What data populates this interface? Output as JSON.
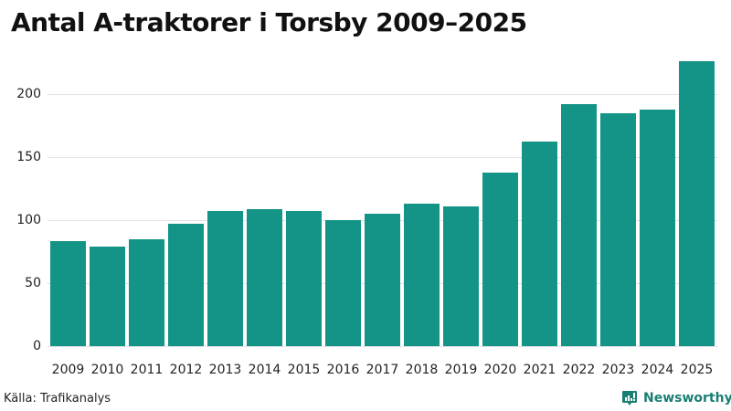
{
  "title": "Antal A-traktorer i Torsby 2009–2025",
  "source": "Källa: Trafikanalys",
  "brand": {
    "name": "Newsworthy",
    "icon": "newsworthy-chart-bubble-icon",
    "color": "#1a7e73"
  },
  "colors": {
    "bar": "#149486",
    "grid": "#e2e2e8"
  },
  "chart_data": {
    "type": "bar",
    "title": "Antal A-traktorer i Torsby 2009–2025",
    "xlabel": "",
    "ylabel": "",
    "categories": [
      "2009",
      "2010",
      "2011",
      "2012",
      "2013",
      "2014",
      "2015",
      "2016",
      "2017",
      "2018",
      "2019",
      "2020",
      "2021",
      "2022",
      "2023",
      "2024",
      "2025"
    ],
    "values": [
      83,
      79,
      85,
      97,
      107,
      109,
      107,
      100,
      105,
      113,
      111,
      138,
      162,
      192,
      185,
      188,
      226
    ],
    "ylim": [
      0,
      230
    ],
    "yticks": [
      0,
      50,
      100,
      150,
      200
    ],
    "grid": true,
    "legend": null,
    "source": "Trafikanalys"
  }
}
